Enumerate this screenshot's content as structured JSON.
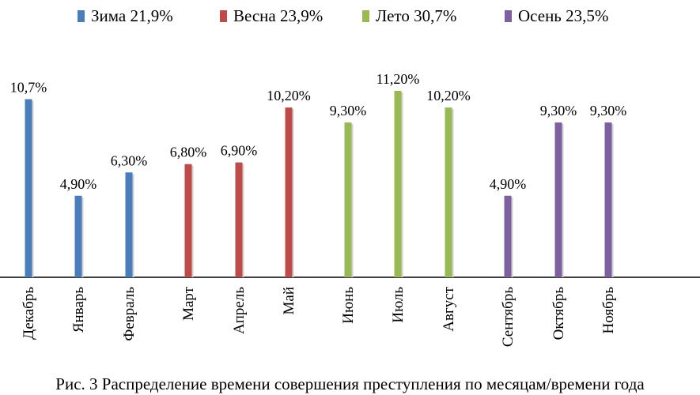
{
  "chart_data": {
    "type": "bar",
    "categories": [
      "Декабрь",
      "Январь",
      "Февраль",
      "Март",
      "Апрель",
      "Май",
      "Июнь",
      "Июль",
      "Август",
      "Сентябрь",
      "Октябрь",
      "Ноябрь"
    ],
    "values": [
      10.7,
      4.9,
      6.3,
      6.8,
      6.9,
      10.2,
      9.3,
      11.2,
      10.2,
      4.9,
      9.3,
      9.3
    ],
    "data_labels": [
      "10,7%",
      "4,90%",
      "6,30%",
      "6,80%",
      "6,90%",
      "10,20%",
      "9,30%",
      "11,20%",
      "10,20%",
      "4,90%",
      "9,30%",
      "9,30%"
    ],
    "series_index": [
      0,
      0,
      0,
      1,
      1,
      1,
      2,
      2,
      2,
      3,
      3,
      3
    ],
    "series": [
      {
        "label": "Зима 21,9%",
        "color": "#4a7ebb"
      },
      {
        "label": "Весна 23,9%",
        "color": "#be4b48"
      },
      {
        "label": "Лето 30,7%",
        "color": "#98b954"
      },
      {
        "label": "Осень 23,5%",
        "color": "#7d60a0"
      }
    ],
    "ylim": [
      0,
      11.2
    ],
    "grid": false,
    "legend_position": "top",
    "title": "",
    "xlabel": "",
    "ylabel": ""
  },
  "caption": "Рис. 3 Распределение времени совершения преступления по месяцам/времени года"
}
